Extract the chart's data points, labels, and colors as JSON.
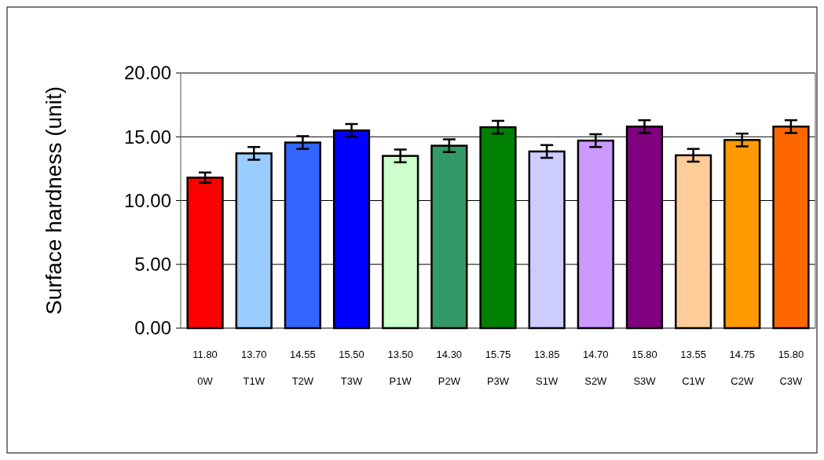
{
  "chart_data": {
    "type": "bar",
    "ylabel": "Surface hardness (unit)",
    "categories": [
      "0W",
      "T1W",
      "T2W",
      "T3W",
      "P1W",
      "P2W",
      "P3W",
      "S1W",
      "S2W",
      "S3W",
      "C1W",
      "C2W",
      "C3W"
    ],
    "values": [
      11.8,
      13.7,
      14.55,
      15.5,
      13.5,
      14.3,
      15.75,
      13.85,
      14.7,
      15.8,
      13.55,
      14.75,
      15.8
    ],
    "value_labels": [
      "11.80",
      "13.70",
      "14.55",
      "15.50",
      "13.50",
      "14.30",
      "15.75",
      "13.85",
      "14.70",
      "15.80",
      "13.55",
      "14.75",
      "15.80"
    ],
    "errors": [
      0.4,
      0.5,
      0.5,
      0.5,
      0.5,
      0.5,
      0.5,
      0.5,
      0.5,
      0.5,
      0.5,
      0.5,
      0.5
    ],
    "colors": [
      "#ff0000",
      "#99ccff",
      "#3366ff",
      "#0000ff",
      "#ccffcc",
      "#339966",
      "#008000",
      "#ccccff",
      "#cc99ff",
      "#800080",
      "#ffcc99",
      "#ff9900",
      "#ff6600"
    ],
    "ylim": [
      0,
      20
    ],
    "yticks": [
      {
        "value": 0,
        "label": "0.00"
      },
      {
        "value": 5,
        "label": "5.00"
      },
      {
        "value": 10,
        "label": "10.00"
      },
      {
        "value": 15,
        "label": "15.00"
      },
      {
        "value": 20,
        "label": "20.00"
      }
    ],
    "grid": "y"
  }
}
